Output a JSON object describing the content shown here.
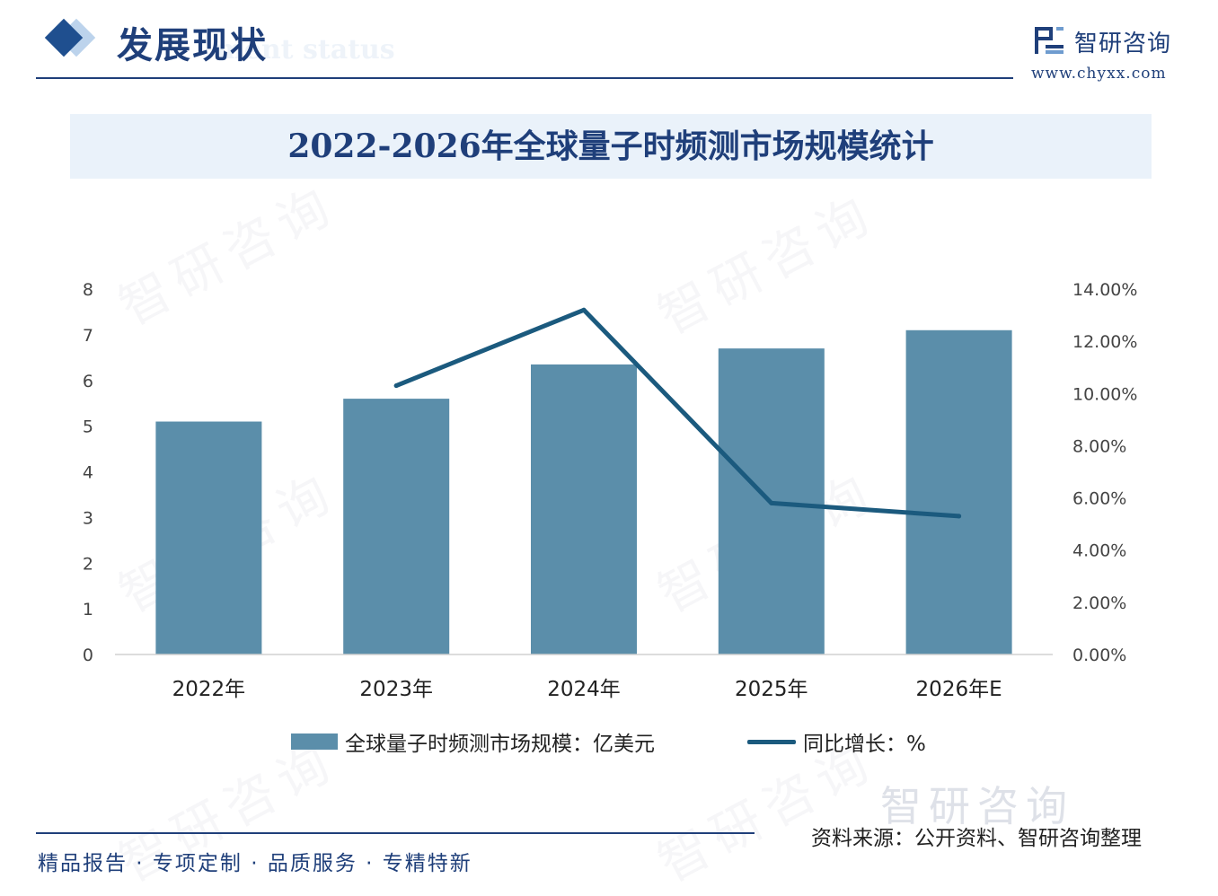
{
  "header": {
    "section_title": "发展现状",
    "section_subtitle": "ment status",
    "brand_name": "智研咨询",
    "brand_url": "www.chyxx.com"
  },
  "watermark_text": "智研咨询",
  "chart_data": {
    "type": "bar",
    "title": "2022-2026年全球量子时频测市场规模统计",
    "categories": [
      "2022年",
      "2023年",
      "2024年",
      "2025年",
      "2026年E"
    ],
    "series": [
      {
        "name": "全球量子时频测市场规模：亿美元",
        "type": "bar",
        "axis": "left",
        "color": "#5b8eaa",
        "values": [
          5.1,
          5.6,
          6.35,
          6.7,
          7.1
        ]
      },
      {
        "name": "同比增长：%",
        "type": "line",
        "axis": "right",
        "color": "#1b5a7e",
        "values": [
          null,
          10.3,
          13.2,
          5.8,
          5.3
        ]
      }
    ],
    "y_left": {
      "range": [
        0,
        8
      ],
      "ticks": [
        "0",
        "1",
        "2",
        "3",
        "4",
        "5",
        "6",
        "7",
        "8"
      ]
    },
    "y_right": {
      "range": [
        0,
        14
      ],
      "ticks": [
        "0.00%",
        "2.00%",
        "4.00%",
        "6.00%",
        "8.00%",
        "10.00%",
        "12.00%",
        "14.00%"
      ]
    },
    "grid": false,
    "legend_position": "bottom"
  },
  "footer": {
    "slogan": "精品报告 · 专项定制 · 品质服务 · 专精特新",
    "source": "资料来源：公开资料、智研咨询整理"
  }
}
